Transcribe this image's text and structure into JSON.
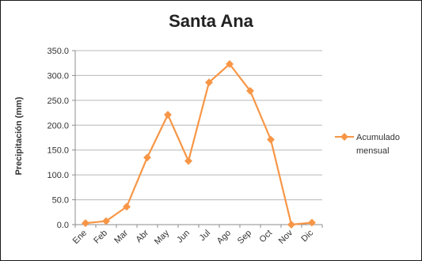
{
  "chart_data": {
    "type": "line",
    "title": "Santa Ana",
    "ylabel": "Precipitación (mm)",
    "xlabel": "",
    "categories": [
      "Ene",
      "Feb",
      "Mar",
      "Abr",
      "May",
      "Jun",
      "Jul",
      "Ago",
      "Sep",
      "Oct",
      "Nov",
      "Dic"
    ],
    "series": [
      {
        "name": "Acumulado mensual",
        "values": [
          3.0,
          7.0,
          36.0,
          135.0,
          221.0,
          128.0,
          286.0,
          323.0,
          269.0,
          171.0,
          0.0,
          4.0
        ],
        "color": "#F79646"
      }
    ],
    "ylim": [
      0,
      350
    ],
    "yticks": [
      "0.0",
      "50.0",
      "100.0",
      "150.0",
      "200.0",
      "250.0",
      "300.0",
      "350.0"
    ],
    "grid": "horizontal",
    "legend": "right"
  }
}
